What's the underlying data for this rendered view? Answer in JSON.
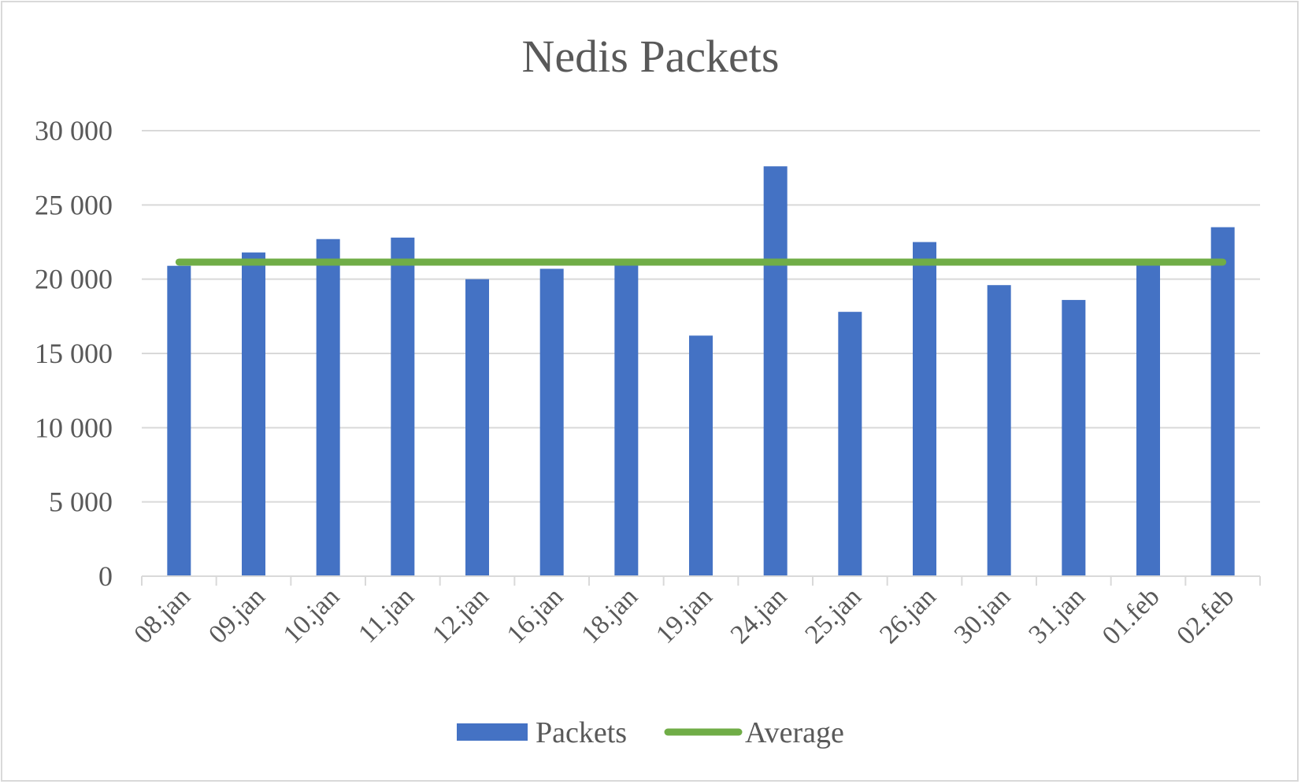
{
  "chart_data": {
    "type": "bar",
    "title": "Nedis Packets",
    "xlabel": "",
    "ylabel": "",
    "categories": [
      "08.jan",
      "09.jan",
      "10.jan",
      "11.jan",
      "12.jan",
      "16.jan",
      "18.jan",
      "19.jan",
      "24.jan",
      "25.jan",
      "26.jan",
      "30.jan",
      "31.jan",
      "01.feb",
      "02.feb"
    ],
    "series": [
      {
        "name": "Packets",
        "type": "bar",
        "color": "#4472c4",
        "values": [
          20900,
          21800,
          22700,
          22800,
          20000,
          20700,
          21100,
          16200,
          27600,
          17800,
          22500,
          19600,
          18600,
          21000,
          23500
        ]
      },
      {
        "name": "Average",
        "type": "line",
        "color": "#70ad47",
        "values": [
          21150,
          21150,
          21150,
          21150,
          21150,
          21150,
          21150,
          21150,
          21150,
          21150,
          21150,
          21150,
          21150,
          21150,
          21150
        ]
      }
    ],
    "ylim": [
      0,
      30000
    ],
    "yticks": [
      0,
      5000,
      10000,
      15000,
      20000,
      25000,
      30000
    ],
    "ytick_labels": [
      "0",
      "5 000",
      "10 000",
      "15 000",
      "20 000",
      "25 000",
      "30 000"
    ],
    "grid": true,
    "legend": "bottom",
    "colors": {
      "gridline": "#d9d9d9",
      "text": "#595959",
      "axis": "#d9d9d9"
    }
  }
}
